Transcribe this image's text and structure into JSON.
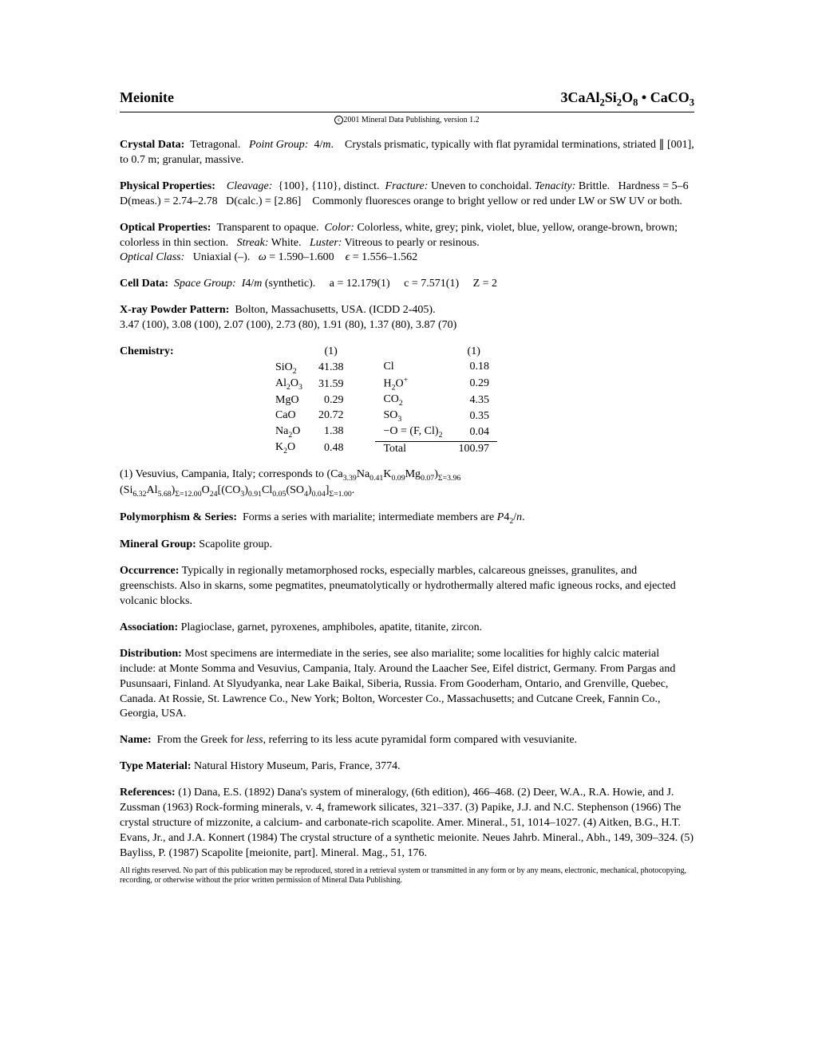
{
  "title": {
    "mineral_name": "Meionite",
    "formula_html": "3CaAl<span class=\"sub\">2</span>Si<span class=\"sub\">2</span>O<span class=\"sub\">8</span>&nbsp;•&nbsp;CaCO<span class=\"sub\">3</span>"
  },
  "copyright": "2001 Mineral Data Publishing, version 1.2",
  "crystal_data": {
    "label": "Crystal Data:",
    "text_html": "&nbsp;&nbsp;Tetragonal.&nbsp;&nbsp; <span class=\"italic\">Point Group:</span>&nbsp; 4/<span class=\"italic\">m</span>.&nbsp;&nbsp;&nbsp; Crystals prismatic, typically with flat pyramidal terminations, striated ∥ [001], to 0.7&nbsp;m; granular, massive."
  },
  "physical_properties": {
    "label": "Physical Properties:",
    "text_html": "&nbsp;&nbsp;&nbsp;&nbsp;<span class=\"italic\">Cleavage:</span>&nbsp; {100}, {110}, distinct.&nbsp; <span class=\"italic\">Fracture:</span> Uneven to conchoidal. <span class=\"italic\">Tenacity:</span> Brittle.&nbsp;&nbsp; Hardness = 5–6&nbsp;&nbsp; D(meas.) = 2.74–2.78&nbsp;&nbsp; D(calc.) = [2.86]&nbsp;&nbsp;&nbsp; Commonly fluoresces orange to bright yellow or red under LW or SW UV or both."
  },
  "optical_properties": {
    "label": "Optical Properties:",
    "text_html": "&nbsp;&nbsp;Transparent to opaque.&nbsp; <span class=\"italic\">Color:</span> Colorless, white, grey; pink, violet, blue, yellow, orange-brown, brown; colorless in thin section.&nbsp;&nbsp; <span class=\"italic\">Streak:</span> White.&nbsp;&nbsp; <span class=\"italic\">Luster:</span> Vitreous to pearly or resinous.<br><span class=\"italic\">Optical Class:</span>&nbsp;&nbsp; Uniaxial (–).&nbsp;&nbsp; <span class=\"italic\">ω</span> = 1.590–1.600&nbsp;&nbsp;&nbsp; <span class=\"italic\">ϵ</span> = 1.556–1.562"
  },
  "cell_data": {
    "label": "Cell Data:",
    "text_html": "&nbsp;&nbsp;<span class=\"italic\">Space Group:</span>&nbsp; <span class=\"italic\">I</span>4/<span class=\"italic\">m</span> (synthetic).&nbsp;&nbsp;&nbsp;&nbsp; a = 12.179(1)&nbsp;&nbsp;&nbsp;&nbsp; c = 7.571(1)&nbsp;&nbsp;&nbsp;&nbsp; Z = 2"
  },
  "xray": {
    "label": "X-ray Powder Pattern:",
    "text_html": "&nbsp;&nbsp;Bolton, Massachusetts, USA. (ICDD 2-405).<br>3.47 (100), 3.08 (100), 2.07 (100), 2.73 (80), 1.91 (80), 1.37 (80), 3.87 (70)"
  },
  "chemistry": {
    "label": "Chemistry:",
    "header": "(1)",
    "left": [
      {
        "name_html": "SiO<span class=\"sub\">2</span>",
        "val": "41.38"
      },
      {
        "name_html": "Al<span class=\"sub\">2</span>O<span class=\"sub\">3</span>",
        "val": "31.59"
      },
      {
        "name_html": "MgO",
        "val": "0.29"
      },
      {
        "name_html": "CaO",
        "val": "20.72"
      },
      {
        "name_html": "Na<span class=\"sub\">2</span>O",
        "val": "1.38"
      },
      {
        "name_html": "K<span class=\"sub\">2</span>O",
        "val": "0.48"
      }
    ],
    "right": [
      {
        "name_html": "Cl",
        "val": "0.18"
      },
      {
        "name_html": "H<span class=\"sub\">2</span>O<span class=\"sup\">+</span>",
        "val": "0.29"
      },
      {
        "name_html": "CO<span class=\"sub\">2</span>",
        "val": "4.35"
      },
      {
        "name_html": "SO<span class=\"sub\">3</span>",
        "val": "0.35"
      },
      {
        "name_html": "−O = (F, Cl)<span class=\"sub\">2</span>",
        "val": "0.04",
        "underline": true
      }
    ],
    "total_label": "Total",
    "total_val": "100.97"
  },
  "chemistry_note": {
    "text_html": "(1) Vesuvius, Campania, Italy; corresponds to (Ca<span class=\"sub\">3.39</span>Na<span class=\"sub\">0.41</span>K<span class=\"sub\">0.09</span>Mg<span class=\"sub\">0.07</span>)<span class=\"sub\">Σ=3.96</span> (Si<span class=\"sub\">6.32</span>Al<span class=\"sub\">5.68</span>)<span class=\"sub\">Σ=12.00</span>O<span class=\"sub\">24</span>[(CO<span class=\"sub\">3</span>)<span class=\"sub\">0.91</span>Cl<span class=\"sub\">0.05</span>(SO<span class=\"sub\">4</span>)<span class=\"sub\">0.04</span>]<span class=\"sub\">Σ=1.00</span>."
  },
  "polymorphism": {
    "label": "Polymorphism & Series:",
    "text_html": "&nbsp;&nbsp;Forms a series with marialite; intermediate members are <span class=\"italic\">P</span>4<span class=\"sub\">2</span>/<span class=\"italic\">n</span>."
  },
  "mineral_group": {
    "label": "Mineral Group:",
    "text": "  Scapolite group."
  },
  "occurrence": {
    "label": "Occurrence:",
    "text": "  Typically in regionally metamorphosed rocks, especially marbles, calcareous gneisses, granulites, and greenschists. Also in skarns, some pegmatites, pneumatolytically or hydrothermally altered mafic igneous rocks, and ejected volcanic blocks."
  },
  "association": {
    "label": "Association:",
    "text": "  Plagioclase, garnet, pyroxenes, amphiboles, apatite, titanite, zircon."
  },
  "distribution": {
    "label": "Distribution:",
    "text": "  Most specimens are intermediate in the series, see also marialite; some localities for highly calcic material include: at Monte Somma and Vesuvius, Campania, Italy. Around the Laacher See, Eifel district, Germany. From Pargas and Pusunsaari, Finland. At Slyudyanka, near Lake Baikal, Siberia, Russia. From Gooderham, Ontario, and Grenville, Quebec, Canada. At Rossie, St. Lawrence Co., New York; Bolton, Worcester Co., Massachusetts; and Cutcane Creek, Fannin Co., Georgia, USA."
  },
  "name": {
    "label": "Name:",
    "text_html": "&nbsp;&nbsp;From the Greek for <span class=\"italic\">less</span>, referring to its less acute pyramidal form compared with vesuvianite."
  },
  "type_material": {
    "label": "Type Material:",
    "text": "  Natural History Museum, Paris, France, 3774."
  },
  "references": {
    "label": "References:",
    "text": "  (1) Dana, E.S. (1892) Dana's system of mineralogy, (6th edition), 466–468. (2) Deer, W.A., R.A. Howie, and J. Zussman (1963) Rock-forming minerals, v. 4, framework silicates, 321–337. (3) Papike, J.J. and N.C. Stephenson (1966) The crystal structure of mizzonite, a calcium- and carbonate-rich scapolite. Amer. Mineral., 51, 1014–1027. (4) Aitken, B.G., H.T. Evans, Jr., and J.A. Konnert (1984) The crystal structure of a synthetic meionite. Neues Jahrb. Mineral., Abh., 149, 309–324. (5) Bayliss, P. (1987) Scapolite [meionite, part]. Mineral. Mag., 51, 176."
  },
  "footer": "All rights reserved. No part of this publication may be reproduced, stored in a retrieval system or transmitted in any form or by any means, electronic, mechanical, photocopying, recording, or otherwise without the prior written permission of Mineral Data Publishing."
}
